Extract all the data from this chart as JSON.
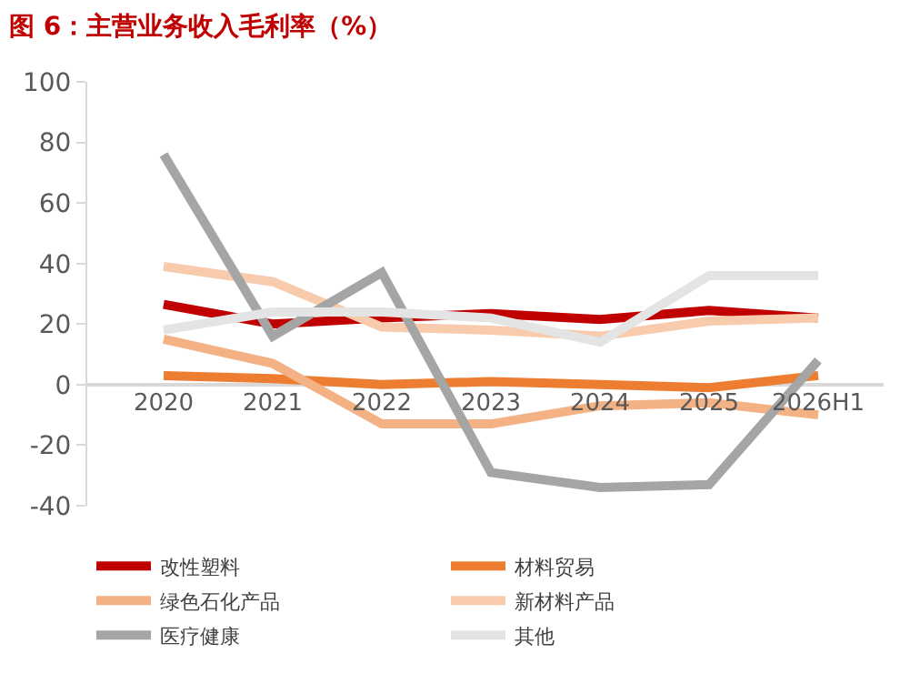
{
  "chart_data": {
    "type": "line",
    "title": "图 6：主营业务收入毛利率（%）",
    "categories": [
      "2020",
      "2021",
      "2022",
      "2023",
      "2024",
      "2025",
      "2026H1"
    ],
    "series": [
      {
        "name": "改性塑料",
        "color": "#c00000",
        "values": [
          26.5,
          20,
          22,
          23.5,
          21.5,
          24.5,
          22
        ]
      },
      {
        "name": "材料贸易",
        "color": "#ed7d31",
        "values": [
          3,
          2,
          0,
          1,
          0,
          -1,
          3
        ]
      },
      {
        "name": "绿色石化产品",
        "color": "#f4b183",
        "values": [
          15,
          7,
          -13,
          -13,
          -7,
          -6,
          -10
        ]
      },
      {
        "name": "新材料产品",
        "color": "#f8cbad",
        "values": [
          39,
          34,
          19,
          18,
          16,
          21,
          22
        ]
      },
      {
        "name": "医疗健康",
        "color": "#a5a5a5",
        "values": [
          76,
          16,
          37,
          -29,
          -34,
          -33,
          8
        ]
      },
      {
        "name": "其他",
        "color": "#e4e4e4",
        "values": [
          18,
          24,
          24,
          22,
          14,
          36,
          36
        ]
      }
    ],
    "ylim": [
      -40,
      100
    ],
    "yticks": [
      -40,
      -20,
      0,
      20,
      40,
      60,
      80,
      100
    ],
    "legend": "bottom",
    "marker": "none",
    "line_style": "solid"
  }
}
